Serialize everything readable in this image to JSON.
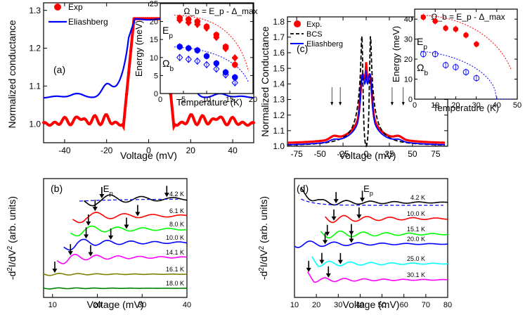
{
  "chart_data": [
    {
      "id": "a",
      "type": "line",
      "panel_label": "(a)",
      "xlabel": "Voltage (mV)",
      "ylabel": "Normalized conductance",
      "xlim": [
        -50,
        50
      ],
      "ylim": [
        0.95,
        1.32
      ],
      "xticks": [
        -40,
        -20,
        0,
        20,
        40
      ],
      "yticks": [
        1.0,
        1.1,
        1.2,
        1.3
      ],
      "xtick_labels": [
        "-40",
        "-20",
        "0",
        "20",
        "40"
      ],
      "ytick_labels": [
        "1.0",
        "1.1",
        "1.2",
        "1.3"
      ],
      "legend": [
        "Exp",
        "Eliashberg"
      ],
      "colors": {
        "exp": "#ff0000",
        "fit": "#0000ff"
      }
    },
    {
      "id": "a-inset",
      "type": "scatter",
      "formula": "Ω_b = E_p - Δ_max",
      "xlabel": "Temperature (K)",
      "ylabel": "Energy (meV)",
      "xlim": [
        0,
        20
      ],
      "ylim": [
        0,
        25
      ],
      "xticks": [
        0,
        5,
        10,
        15,
        20
      ],
      "yticks": [
        0,
        5,
        10,
        15,
        20,
        25
      ],
      "xtick_labels": [
        "0",
        "5",
        "10",
        "15",
        "20"
      ],
      "ytick_labels": [
        "0",
        "5",
        "10",
        "15",
        "20",
        "25"
      ],
      "series": [
        {
          "name": "E_p (filled)",
          "label": "E",
          "sub": "p",
          "color": "#ff0000",
          "x": [
            4.2,
            6.1,
            8.0,
            10.0,
            12.1,
            14.1,
            16.1
          ],
          "y": [
            21.0,
            20.6,
            20.0,
            18.6,
            16.3,
            13.0,
            8.0
          ]
        },
        {
          "name": "E_p (open)",
          "color": "#ff0000",
          "x": [
            4.2,
            6.1,
            8.0,
            10.0,
            12.1,
            14.1,
            16.1
          ],
          "y": [
            20.4,
            19.7,
            19.2,
            18.2,
            15.6,
            12.5,
            9.9
          ]
        },
        {
          "name": "Ω_b (filled)",
          "label": "Ω",
          "sub": "b",
          "color": "#0000ff",
          "x": [
            4.2,
            6.1,
            8.0,
            10.0,
            12.1,
            14.1,
            16.1
          ],
          "y": [
            13.0,
            12.6,
            12.0,
            10.4,
            8.4,
            5.9,
            4.5
          ]
        },
        {
          "name": "Ω_b (open)",
          "color": "#0000ff",
          "x": [
            4.2,
            6.1,
            8.0,
            10.0,
            12.1,
            14.1,
            16.1
          ],
          "y": [
            10.0,
            9.5,
            9.0,
            8.0,
            6.8,
            5.2,
            3.0
          ]
        }
      ]
    },
    {
      "id": "b",
      "type": "line",
      "panel_label": "(b)",
      "xlabel": "Voltage (mV)",
      "ylabel": "-d²I/dV² (arb. units)",
      "ylabel_parts": [
        "-d",
        "2",
        "I/dV",
        "2",
        " (arb. units)"
      ],
      "xlim": [
        8,
        40
      ],
      "xticks": [
        10,
        20,
        30,
        40
      ],
      "xtick_labels": [
        "10",
        "20",
        "30",
        "40"
      ],
      "annotation": {
        "label": "E",
        "sub": "p"
      },
      "series": [
        {
          "name": "4.2 K",
          "color": "#000000",
          "arrows_mV": [
            21,
            35.5
          ]
        },
        {
          "name": "6.1 K",
          "color": "#ff0000",
          "arrows_mV": [
            19.5,
            29
          ]
        },
        {
          "name": "8.0 K",
          "color": "#00ff00",
          "arrows_mV": [
            18,
            26.5
          ]
        },
        {
          "name": "10.0 K",
          "color": "#0000ff",
          "arrows_mV": [
            17.5,
            23
          ]
        },
        {
          "name": "14.1 K",
          "color": "#ff00ff",
          "arrows_mV": [
            14,
            18.5
          ]
        },
        {
          "name": "16.1 K",
          "color": "#808000",
          "arrows_mV": [
            10.5
          ]
        },
        {
          "name": "18.0 K",
          "color": "#008000",
          "arrows_mV": []
        }
      ]
    },
    {
      "id": "c",
      "type": "line",
      "panel_label": "(c)",
      "xlabel": "Voltage (mV)",
      "ylabel": "Normalized Conductance",
      "xlim": [
        -85,
        88
      ],
      "ylim": [
        1.0,
        1.83
      ],
      "xticks": [
        -75,
        -50,
        -25,
        0,
        25,
        50,
        75
      ],
      "yticks": [
        1.0,
        1.1,
        1.2,
        1.3,
        1.4,
        1.5,
        1.6,
        1.7,
        1.8
      ],
      "xtick_labels": [
        "-75",
        "-50",
        "-25",
        "0",
        "25",
        "50",
        "75"
      ],
      "ytick_labels": [
        "1.0",
        "1.1",
        "1.2",
        "1.3",
        "1.4",
        "1.5",
        "1.6",
        "1.7",
        "1.8"
      ],
      "legend": [
        "Exp.",
        "BCS",
        "Eliashberg"
      ],
      "colors": {
        "exp": "#ff0000",
        "bcs": "#000000",
        "fit": "#0000ff"
      }
    },
    {
      "id": "c-inset",
      "type": "scatter",
      "formula": "Ω_b = E_p - Δ_max",
      "xlabel": "Temperature (K)",
      "ylabel": "Energy (meV)",
      "xlim": [
        0,
        50
      ],
      "ylim": [
        0,
        45
      ],
      "xticks": [
        0,
        10,
        20,
        30,
        40,
        50
      ],
      "yticks": [
        0,
        10,
        20,
        30,
        40
      ],
      "xtick_labels": [
        "0",
        "10",
        "20",
        "30",
        "40",
        "50"
      ],
      "ytick_labels": [
        "0",
        "10",
        "20",
        "30",
        "40"
      ],
      "series": [
        {
          "name": "E_p",
          "label": "E",
          "sub": "p",
          "color": "#ff0000",
          "x": [
            4.2,
            10.0,
            15.1,
            20.0,
            25.0,
            30.1
          ],
          "y": [
            41.0,
            39.0,
            35.5,
            35.0,
            32.0,
            27.5
          ]
        },
        {
          "name": "Ω_b",
          "label": "Ω",
          "sub": "b",
          "color": "#0000ff",
          "x": [
            4.2,
            10.0,
            15.1,
            20.0,
            25.0,
            30.1
          ],
          "y": [
            22.5,
            22.5,
            17.0,
            16.0,
            13.5,
            10.5
          ]
        }
      ]
    },
    {
      "id": "d",
      "type": "line",
      "panel_label": "(d)",
      "xlabel": "Voltage (mV)",
      "ylabel": "-d²I/dV² (arb. units)",
      "ylabel_parts": [
        "-d",
        "2",
        "I/dV",
        "2",
        " (arb. units)"
      ],
      "xlim": [
        10,
        80
      ],
      "xticks": [
        10,
        20,
        30,
        40,
        50,
        60,
        70,
        80
      ],
      "xtick_labels": [
        "10",
        "20",
        "30",
        "40",
        "50",
        "60",
        "70",
        "80"
      ],
      "annotation": {
        "label": "E",
        "sub": "p"
      },
      "series": [
        {
          "name": "4.2 K",
          "color": "#000000",
          "arrows_mV": [
            29,
            41
          ]
        },
        {
          "name": "10.0 K",
          "color": "#ff0000",
          "arrows_mV": [
            28,
            39.5
          ]
        },
        {
          "name": "15.1 K",
          "color": "#00ff00",
          "arrows_mV": [
            25,
            36
          ]
        },
        {
          "name": "20.0 K",
          "color": "#0000ff",
          "arrows_mV": [
            24,
            36
          ]
        },
        {
          "name": "25.0 K",
          "color": "#00ffff",
          "arrows_mV": [
            22.5,
            31
          ]
        },
        {
          "name": "30.1 K",
          "color": "#ff00ff",
          "arrows_mV": [
            16.5,
            25.5
          ]
        }
      ]
    }
  ]
}
